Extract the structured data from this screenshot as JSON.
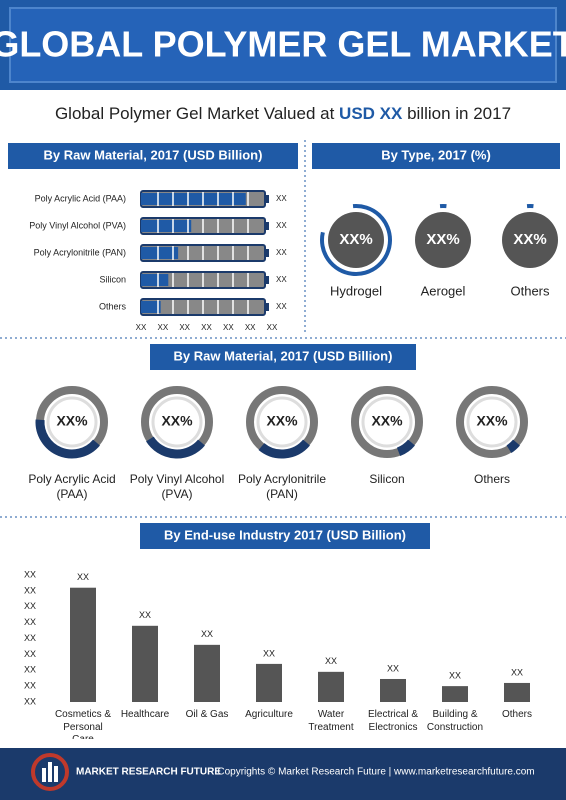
{
  "header": {
    "title": "GLOBAL POLYMER GEL MARKET",
    "subtitle_pre": "Global Polymer Gel Market Valued at ",
    "subtitle_highlight": "USD XX",
    "subtitle_post": " billion in 2017"
  },
  "chart_data": [
    {
      "type": "hbar",
      "title": "By Raw Material, 2017 (USD Billion)",
      "categories": [
        "Poly Acrylic Acid (PAA)",
        "Poly Vinyl Alcohol (PVA)",
        "Poly Acrylonitrile (PAN)",
        "Silicon",
        "Others"
      ],
      "values": [
        4.8,
        2.3,
        1.7,
        1.25,
        0.9
      ],
      "value_labels": [
        "XX",
        "XX",
        "XX",
        "XX",
        "XX"
      ],
      "xlim": [
        0,
        6
      ],
      "xticks": [
        {
          "value": 0,
          "label": "XX"
        },
        {
          "value": 1,
          "label": "XX"
        },
        {
          "value": 2,
          "label": "XX"
        },
        {
          "value": 3,
          "label": "XX"
        },
        {
          "value": 4,
          "label": "XX"
        },
        {
          "value": 5,
          "label": "XX"
        },
        {
          "value": 6,
          "label": "XX"
        }
      ],
      "color": "#1f5aa6"
    },
    {
      "type": "donut",
      "title": "By Type, 2017 (%)",
      "categories": [
        "Hydrogel",
        "Aerogel",
        "Others"
      ],
      "values": [
        80,
        3,
        3
      ],
      "value_labels": [
        "XX%",
        "XX%",
        "XX%"
      ],
      "color": "#1f5aa6"
    },
    {
      "type": "ring",
      "title": "By Raw Material, 2017 (USD Billion)",
      "categories": [
        "Poly Acrylic Acid (PAA)",
        "Poly Vinyl Alcohol (PVA)",
        "Poly Acrylonitrile (PAN)",
        "Silicon",
        "Others"
      ],
      "values": [
        40,
        30,
        25,
        8,
        5
      ],
      "value_labels": [
        "XX%",
        "XX%",
        "XX%",
        "XX%",
        "XX%"
      ],
      "color": "#1b3a6b"
    },
    {
      "type": "bar",
      "title": "By End-use Industry 2017 (USD Billion)",
      "categories": [
        "Cosmetics & Personal Care",
        "Healthcare",
        "Oil & Gas",
        "Agriculture",
        "Water Treatment",
        "Electrical & Electronics",
        "Building & Construction",
        "Others"
      ],
      "values": [
        7.2,
        4.8,
        3.6,
        2.4,
        1.9,
        1.45,
        1.0,
        1.2
      ],
      "value_labels": [
        "XX",
        "XX",
        "XX",
        "XX",
        "XX",
        "XX",
        "XX",
        "XX"
      ],
      "ylim": [
        0,
        8
      ],
      "yticks": [
        {
          "value": 0,
          "label": "XX"
        },
        {
          "value": 1,
          "label": "XX"
        },
        {
          "value": 2,
          "label": "XX"
        },
        {
          "value": 3,
          "label": "XX"
        },
        {
          "value": 4,
          "label": "XX"
        },
        {
          "value": 5,
          "label": "XX"
        },
        {
          "value": 6,
          "label": "XX"
        },
        {
          "value": 7,
          "label": "XX"
        },
        {
          "value": 8,
          "label": "XX"
        }
      ],
      "color": "#555555"
    }
  ],
  "footer": {
    "brand": "MARKET RESEARCH FUTURE",
    "copyright": "Copyrights © Market Research Future | www.marketresearchfuture.com"
  }
}
